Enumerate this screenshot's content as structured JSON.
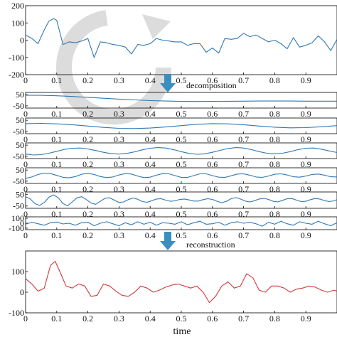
{
  "xlabel": "time",
  "annotations": {
    "decomposition": "decomposition",
    "reconstruction": "reconstruction"
  },
  "colors": {
    "signal": "#2f78b7",
    "reconstruction": "#d03a3a",
    "arrow": "#3a8fbf",
    "watermark": "#d9d9d9"
  },
  "watermark_icon": "circular-arrow-watermark-icon",
  "chart_data": [
    {
      "type": "line",
      "name": "original-signal",
      "xlim": [
        0,
        1
      ],
      "ylim": [
        -200,
        200
      ],
      "xticks": [
        "0",
        "0.1",
        "0.2",
        "0.3",
        "0.4",
        "0.5",
        "0.6",
        "0.7",
        "0.8",
        "0.9"
      ],
      "yticks": [
        "200",
        "100",
        "0",
        "-100",
        "-200"
      ],
      "yticks_values": [
        200,
        100,
        0,
        -100,
        -200
      ],
      "x": [
        0,
        0.02,
        0.04,
        0.06,
        0.075,
        0.09,
        0.1,
        0.12,
        0.14,
        0.16,
        0.18,
        0.2,
        0.22,
        0.24,
        0.26,
        0.28,
        0.3,
        0.32,
        0.34,
        0.36,
        0.38,
        0.4,
        0.42,
        0.44,
        0.46,
        0.48,
        0.5,
        0.52,
        0.54,
        0.56,
        0.58,
        0.6,
        0.62,
        0.64,
        0.66,
        0.68,
        0.7,
        0.72,
        0.74,
        0.76,
        0.78,
        0.8,
        0.82,
        0.84,
        0.86,
        0.88,
        0.9,
        0.92,
        0.94,
        0.96,
        0.98,
        1.0
      ],
      "y": [
        30,
        10,
        -20,
        60,
        110,
        125,
        115,
        -25,
        -10,
        -15,
        -5,
        10,
        -100,
        -10,
        -15,
        -25,
        -30,
        -40,
        -80,
        -25,
        -30,
        -20,
        10,
        0,
        -5,
        -10,
        -10,
        -30,
        -20,
        -20,
        -70,
        -45,
        -75,
        10,
        5,
        10,
        40,
        20,
        30,
        10,
        -10,
        0,
        -20,
        -50,
        15,
        -40,
        -30,
        -15,
        25,
        -10,
        -60,
        5
      ]
    },
    {
      "type": "line",
      "name": "component-1",
      "xlim": [
        0,
        1
      ],
      "ylim": [
        -70,
        70
      ],
      "xticks": [
        "0",
        "0.1",
        "0.2",
        "0.3",
        "0.4",
        "0.5",
        "0.6",
        "0.7",
        "0.8",
        "0.9"
      ],
      "yticks": [
        "50",
        "-50"
      ],
      "yticks_values": [
        50,
        -50
      ],
      "x": [
        0,
        0.05,
        0.1,
        0.15,
        0.2,
        0.25,
        0.3,
        0.35,
        0.4,
        0.45,
        0.5,
        0.55,
        0.6,
        0.65,
        0.7,
        0.75,
        0.8,
        0.85,
        0.9,
        0.95,
        1.0
      ],
      "y": [
        45,
        44,
        40,
        34,
        26,
        18,
        10,
        3,
        -3,
        -7,
        -10,
        -11,
        -10,
        -9,
        -8,
        -7,
        -7,
        -7,
        -8,
        -8,
        -8
      ]
    },
    {
      "type": "line",
      "name": "component-2",
      "xlim": [
        0,
        1
      ],
      "ylim": [
        -70,
        70
      ],
      "xticks": [
        "0",
        "0.1",
        "0.2",
        "0.3",
        "0.4",
        "0.5",
        "0.6",
        "0.7",
        "0.8",
        "0.9"
      ],
      "yticks": [
        "50",
        "-50"
      ],
      "yticks_values": [
        50,
        -50
      ],
      "x": [
        0,
        0.05,
        0.1,
        0.15,
        0.2,
        0.25,
        0.3,
        0.35,
        0.4,
        0.45,
        0.5,
        0.55,
        0.6,
        0.65,
        0.7,
        0.75,
        0.8,
        0.85,
        0.9,
        0.95,
        1.0
      ],
      "y": [
        20,
        22,
        18,
        10,
        -2,
        -14,
        -22,
        -24,
        -20,
        -10,
        2,
        14,
        20,
        18,
        10,
        -2,
        -12,
        -18,
        -16,
        -8,
        2
      ]
    },
    {
      "type": "line",
      "name": "component-3",
      "xlim": [
        0,
        1
      ],
      "ylim": [
        -70,
        70
      ],
      "xticks": [
        "0",
        "0.1",
        "0.2",
        "0.3",
        "0.4",
        "0.5",
        "0.6",
        "0.7",
        "0.8",
        "0.9"
      ],
      "yticks": [
        "50",
        "-50"
      ],
      "yticks_values": [
        50,
        -50
      ],
      "x": [
        0,
        0.025,
        0.05,
        0.075,
        0.1,
        0.125,
        0.15,
        0.175,
        0.2,
        0.225,
        0.25,
        0.275,
        0.3,
        0.325,
        0.35,
        0.375,
        0.4,
        0.425,
        0.45,
        0.475,
        0.5,
        0.525,
        0.55,
        0.575,
        0.6,
        0.625,
        0.65,
        0.675,
        0.7,
        0.725,
        0.75,
        0.775,
        0.8,
        0.825,
        0.85,
        0.875,
        0.9,
        0.925,
        0.95,
        0.975,
        1.0
      ],
      "y": [
        -30,
        -38,
        -35,
        -22,
        -5,
        12,
        22,
        24,
        16,
        2,
        -14,
        -26,
        -30,
        -24,
        -10,
        8,
        22,
        28,
        24,
        10,
        -8,
        -24,
        -32,
        -28,
        -14,
        4,
        20,
        28,
        24,
        10,
        -8,
        -22,
        -28,
        -22,
        -8,
        10,
        22,
        24,
        14,
        -2,
        -16
      ]
    },
    {
      "type": "line",
      "name": "component-4",
      "xlim": [
        0,
        1
      ],
      "ylim": [
        -70,
        70
      ],
      "xticks": [
        "0",
        "0.1",
        "0.2",
        "0.3",
        "0.4",
        "0.5",
        "0.6",
        "0.7",
        "0.8",
        "0.9"
      ],
      "yticks": [
        "50",
        "-50"
      ],
      "yticks_values": [
        50,
        -50
      ],
      "x": [
        0,
        0.02,
        0.04,
        0.06,
        0.08,
        0.1,
        0.12,
        0.14,
        0.16,
        0.18,
        0.2,
        0.22,
        0.24,
        0.26,
        0.28,
        0.3,
        0.32,
        0.34,
        0.36,
        0.38,
        0.4,
        0.42,
        0.44,
        0.46,
        0.48,
        0.5,
        0.52,
        0.54,
        0.56,
        0.58,
        0.6,
        0.62,
        0.64,
        0.66,
        0.68,
        0.7,
        0.72,
        0.74,
        0.76,
        0.78,
        0.8,
        0.82,
        0.84,
        0.86,
        0.88,
        0.9,
        0.92,
        0.94,
        0.96,
        0.98,
        1.0
      ],
      "y": [
        -25,
        -12,
        10,
        22,
        18,
        2,
        -15,
        -20,
        -8,
        12,
        20,
        10,
        -8,
        -18,
        -12,
        6,
        18,
        14,
        -4,
        -18,
        -14,
        4,
        18,
        16,
        0,
        -16,
        -16,
        0,
        16,
        16,
        0,
        -14,
        -16,
        -2,
        14,
        16,
        4,
        -12,
        -16,
        -4,
        12,
        16,
        6,
        -10,
        -14,
        -4,
        10,
        14,
        4,
        -10,
        -12
      ]
    },
    {
      "type": "line",
      "name": "component-5",
      "xlim": [
        0,
        1
      ],
      "ylim": [
        -70,
        70
      ],
      "xticks": [
        "0",
        "0.1",
        "0.2",
        "0.3",
        "0.4",
        "0.5",
        "0.6",
        "0.7",
        "0.8",
        "0.9"
      ],
      "yticks": [
        "50",
        "-50"
      ],
      "yticks_values": [
        50,
        -50
      ],
      "x": [
        0,
        0.015,
        0.03,
        0.045,
        0.06,
        0.075,
        0.09,
        0.105,
        0.12,
        0.135,
        0.15,
        0.165,
        0.18,
        0.195,
        0.21,
        0.225,
        0.24,
        0.255,
        0.27,
        0.285,
        0.3,
        0.315,
        0.33,
        0.345,
        0.36,
        0.375,
        0.39,
        0.405,
        0.42,
        0.435,
        0.45,
        0.465,
        0.48,
        0.495,
        0.51,
        0.525,
        0.54,
        0.555,
        0.57,
        0.585,
        0.6,
        0.615,
        0.63,
        0.645,
        0.66,
        0.675,
        0.69,
        0.705,
        0.72,
        0.735,
        0.75,
        0.765,
        0.78,
        0.795,
        0.81,
        0.825,
        0.84,
        0.855,
        0.87,
        0.885,
        0.9,
        0.915,
        0.93,
        0.945,
        0.96,
        0.975,
        0.99,
        1.0
      ],
      "y": [
        30,
        10,
        -30,
        -45,
        -20,
        25,
        45,
        20,
        -30,
        -48,
        -15,
        20,
        30,
        5,
        -25,
        -35,
        -10,
        15,
        20,
        0,
        -20,
        -15,
        5,
        18,
        8,
        -12,
        -18,
        -5,
        10,
        12,
        0,
        -10,
        -6,
        6,
        10,
        2,
        -8,
        -8,
        4,
        12,
        6,
        -10,
        -22,
        -10,
        12,
        22,
        10,
        -8,
        -15,
        -5,
        10,
        16,
        6,
        -10,
        -15,
        -2,
        12,
        14,
        0,
        -12,
        -10,
        4,
        14,
        10,
        -4,
        -12,
        -6,
        4
      ]
    },
    {
      "type": "line",
      "name": "component-6",
      "xlim": [
        0,
        1
      ],
      "ylim": [
        -130,
        130
      ],
      "xticks": [
        "0",
        "0.1",
        "0.2",
        "0.3",
        "0.4",
        "0.5",
        "0.6",
        "0.7",
        "0.8",
        "0.9"
      ],
      "yticks": [
        "100",
        "0",
        "-100"
      ],
      "yticks_values": [
        100,
        0,
        -100
      ],
      "x": [
        0,
        0.02,
        0.04,
        0.06,
        0.08,
        0.1,
        0.12,
        0.14,
        0.16,
        0.18,
        0.2,
        0.22,
        0.24,
        0.26,
        0.28,
        0.3,
        0.32,
        0.34,
        0.36,
        0.38,
        0.4,
        0.42,
        0.44,
        0.46,
        0.48,
        0.5,
        0.52,
        0.54,
        0.56,
        0.58,
        0.6,
        0.62,
        0.64,
        0.66,
        0.68,
        0.7,
        0.72,
        0.74,
        0.76,
        0.78,
        0.8,
        0.82,
        0.84,
        0.86,
        0.88,
        0.9,
        0.92,
        0.94,
        0.96,
        0.98,
        1.0
      ],
      "y": [
        -20,
        20,
        -10,
        -40,
        10,
        25,
        -15,
        0,
        -40,
        10,
        20,
        -50,
        0,
        30,
        -10,
        -50,
        10,
        -30,
        30,
        -20,
        20,
        -40,
        10,
        0,
        -20,
        30,
        -30,
        10,
        40,
        -20,
        -10,
        20,
        -40,
        10,
        30,
        0,
        20,
        -10,
        -60,
        20,
        -20,
        40,
        -10,
        -40,
        30,
        0,
        -20,
        40,
        -10,
        -50,
        10
      ]
    },
    {
      "type": "line",
      "name": "reconstruction",
      "xlim": [
        0,
        1
      ],
      "ylim": [
        -100,
        200
      ],
      "xticks": [
        "0",
        "0.1",
        "0.2",
        "0.3",
        "0.4",
        "0.5",
        "0.6",
        "0.7",
        "0.8",
        "0.9"
      ],
      "yticks": [
        "100",
        "0",
        "-100"
      ],
      "yticks_values": [
        100,
        0,
        -100
      ],
      "x": [
        0,
        0.02,
        0.04,
        0.06,
        0.08,
        0.095,
        0.11,
        0.13,
        0.15,
        0.17,
        0.19,
        0.21,
        0.23,
        0.25,
        0.27,
        0.29,
        0.31,
        0.33,
        0.35,
        0.37,
        0.39,
        0.41,
        0.43,
        0.45,
        0.47,
        0.49,
        0.51,
        0.53,
        0.55,
        0.57,
        0.59,
        0.61,
        0.63,
        0.65,
        0.67,
        0.69,
        0.71,
        0.73,
        0.75,
        0.77,
        0.79,
        0.81,
        0.83,
        0.85,
        0.87,
        0.89,
        0.91,
        0.93,
        0.95,
        0.97,
        0.99,
        1.0
      ],
      "y": [
        65,
        40,
        5,
        20,
        130,
        150,
        100,
        30,
        20,
        40,
        30,
        -20,
        -15,
        40,
        30,
        5,
        -15,
        -20,
        0,
        30,
        20,
        0,
        10,
        25,
        35,
        40,
        30,
        20,
        30,
        0,
        -50,
        -20,
        30,
        50,
        20,
        30,
        90,
        70,
        10,
        0,
        30,
        30,
        20,
        0,
        15,
        20,
        30,
        25,
        10,
        0,
        10,
        5
      ]
    }
  ]
}
